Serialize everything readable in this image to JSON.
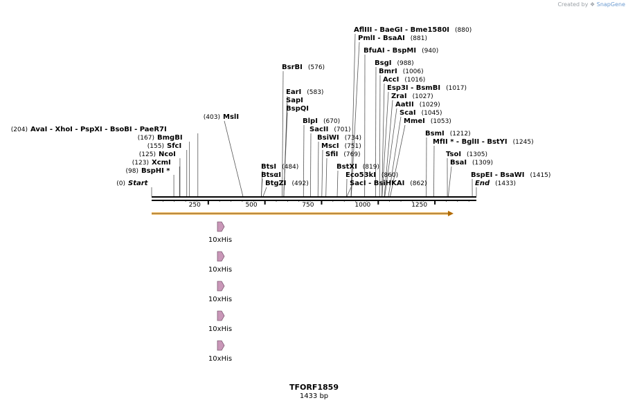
{
  "credit": {
    "prefix": "Created by",
    "brand": "SnapGene"
  },
  "construct": {
    "name": "TFORF1859",
    "length_label": "1433 bp"
  },
  "ruler": {
    "ticks": [
      "250",
      "500",
      "750",
      "1000",
      "1250"
    ]
  },
  "colors": {
    "orf": "#f5a623",
    "feature": "#c997b8",
    "line": "#000000",
    "leader": "#555555"
  },
  "sites": [
    {
      "name": "Start",
      "pos": "(0)",
      "bp": 0,
      "italic": true
    },
    {
      "name": "BspHI *",
      "pos": "(98)",
      "bp": 98
    },
    {
      "name": "XcmI",
      "pos": "(123)",
      "bp": 123
    },
    {
      "name": "NcoI",
      "pos": "(125)",
      "bp": 125
    },
    {
      "name": "SfcI",
      "pos": "(155)",
      "bp": 155
    },
    {
      "name": "BmgBI",
      "pos": "(167)",
      "bp": 167
    },
    {
      "name": "AvaI  - XhoI  - PspXI  - BsoBI  - PaeR7I",
      "pos": "(204)",
      "bp": 204
    },
    {
      "name": "MslI",
      "pos": "(403)",
      "bp": 403
    },
    {
      "name": "BtsI",
      "pos": "(484)",
      "bp": 484
    },
    {
      "name": "BtsαI",
      "pos": "",
      "bp": 484
    },
    {
      "name": "BtgZI",
      "pos": "(492)",
      "bp": 492
    },
    {
      "name": "BsrBI",
      "pos": "(576)",
      "bp": 576
    },
    {
      "name": "EarI",
      "pos": "(583)",
      "bp": 583
    },
    {
      "name": "SapI",
      "pos": "",
      "bp": 583
    },
    {
      "name": "BspQI",
      "pos": "",
      "bp": 583
    },
    {
      "name": "BlpI",
      "pos": "(670)",
      "bp": 670
    },
    {
      "name": "SacII",
      "pos": "(701)",
      "bp": 701
    },
    {
      "name": "BsiWI",
      "pos": "(734)",
      "bp": 734
    },
    {
      "name": "MscI",
      "pos": "(751)",
      "bp": 751
    },
    {
      "name": "SfiI",
      "pos": "(769)",
      "bp": 769
    },
    {
      "name": "BstXI",
      "pos": "(819)",
      "bp": 819
    },
    {
      "name": "AflIII  - BaeGI  - Bme1580I",
      "pos": "(880)",
      "bp": 880
    },
    {
      "name": "PmlI  - BsaAI",
      "pos": "(881)",
      "bp": 881
    },
    {
      "name": "Eco53kI",
      "pos": "(860)",
      "bp": 860
    },
    {
      "name": "SacI  - BsiHKAI",
      "pos": "(862)",
      "bp": 862
    },
    {
      "name": "BfuAI  - BspMI",
      "pos": "(940)",
      "bp": 940
    },
    {
      "name": "BsgI",
      "pos": "(988)",
      "bp": 988
    },
    {
      "name": "BmrI",
      "pos": "(1006)",
      "bp": 1006
    },
    {
      "name": "AccI",
      "pos": "(1016)",
      "bp": 1016
    },
    {
      "name": "Esp3I  - BsmBI",
      "pos": "(1017)",
      "bp": 1017
    },
    {
      "name": "ZraI",
      "pos": "(1027)",
      "bp": 1027
    },
    {
      "name": "AatII",
      "pos": "(1029)",
      "bp": 1029
    },
    {
      "name": "ScaI",
      "pos": "(1045)",
      "bp": 1045
    },
    {
      "name": "MmeI",
      "pos": "(1053)",
      "bp": 1053
    },
    {
      "name": "BsmI",
      "pos": "(1212)",
      "bp": 1212
    },
    {
      "name": "MfII *  - BglII  - BstYI",
      "pos": "(1245)",
      "bp": 1245
    },
    {
      "name": "TsoI",
      "pos": "(1305)",
      "bp": 1305
    },
    {
      "name": "BsaI",
      "pos": "(1309)",
      "bp": 1309
    },
    {
      "name": "BspEI  - BsaWI",
      "pos": "(1415)",
      "bp": 1415
    },
    {
      "name": "End",
      "pos": "(1433)",
      "bp": 1433,
      "italic": true
    }
  ],
  "features": [
    {
      "label": "10xHis"
    },
    {
      "label": "10xHis"
    },
    {
      "label": "10xHis"
    },
    {
      "label": "10xHis"
    },
    {
      "label": "10xHis"
    }
  ]
}
